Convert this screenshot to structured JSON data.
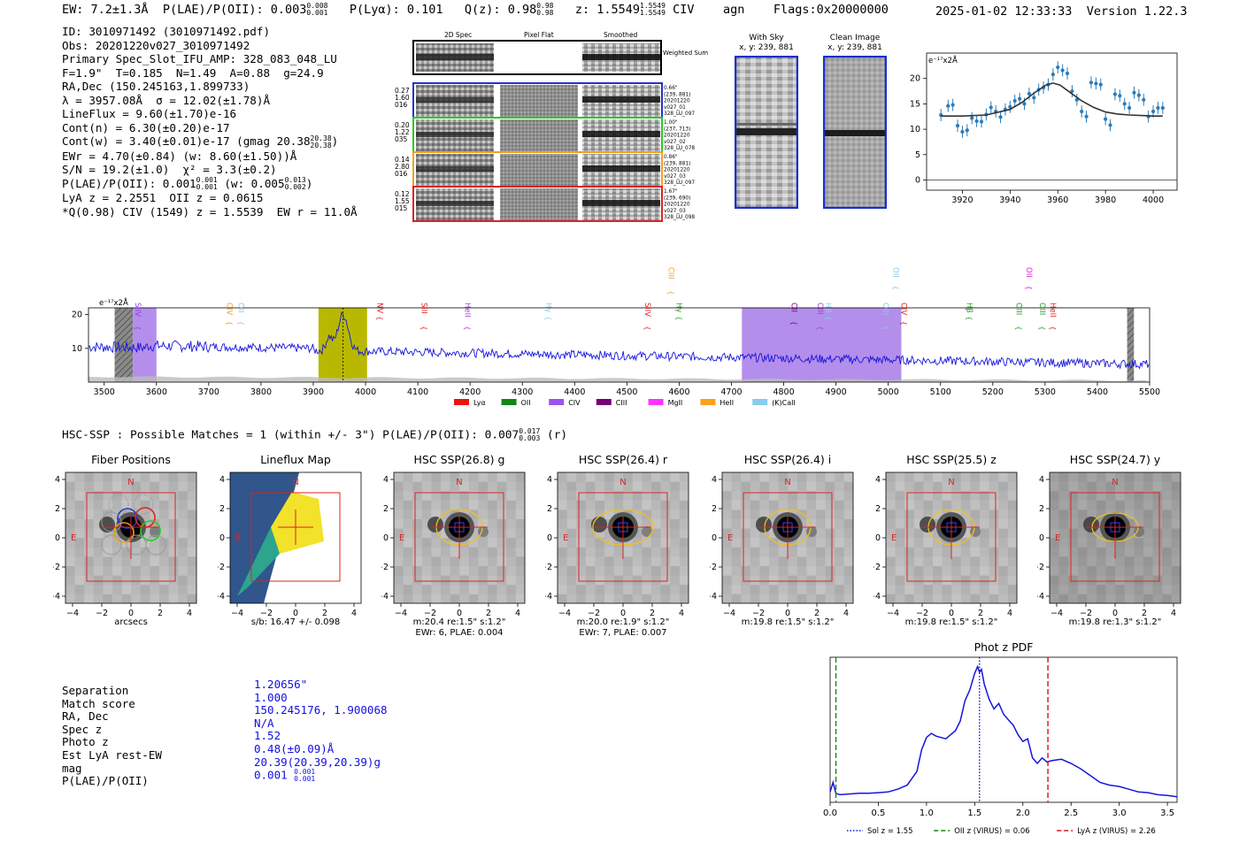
{
  "header": {
    "ew_label": "EW: 7.2±1.3Å",
    "plae_label": "P(LAE)/P(OII): 0.003",
    "plae_hi": "0.008",
    "plae_lo": "0.001",
    "plya": "P(Lyα): 0.101",
    "qz_label": "Q(z): 0.98",
    "qz_hi": "0.98",
    "qz_lo": "0.98",
    "z_label": "z: 1.5549",
    "z_hi": "1.5549",
    "z_lo": "1.5549",
    "line": "CIV",
    "cls": "agn",
    "flags": "Flags:0x20000000",
    "datetime": "2025-01-02 12:33:33",
    "version": "Version 1.22.3"
  },
  "info": {
    "l1": "ID: 3010971492 (3010971492.pdf)",
    "l2": "Obs: 20201220v027_3010971492",
    "l3": "Primary Spec_Slot_IFU_AMP: 328_083_048_LU",
    "l4": "F=1.9\"  T=0.185  N=1.49  A=0.88  g=24.9",
    "l5": "RA,Dec (150.245163,1.899733)",
    "l6": "λ = 3957.08Å  σ = 12.02(±1.78)Å",
    "l7": "LineFlux = 9.60(±1.70)e-16",
    "l8": "Cont(n) = 6.30(±0.20)e-17",
    "l9": "Cont(w) = 3.40(±0.01)e-17 (gmag 20.38",
    "l9_hi": "20.38",
    "l9_lo": "20.38",
    "l10": "EWr = 4.70(±0.84) (w: 8.60(±1.50))Å",
    "l11": "S/N = 19.2(±1.0)  χ² = 3.3(±0.2)",
    "l12a": "P(LAE)/P(OII): 0.001",
    "l12a_hi": "0.001",
    "l12a_lo": "0.001",
    "l12b": "(w: 0.005",
    "l12b_hi": "0.013",
    "l12b_lo": "0.002",
    "l13": "LyA z = 2.2551  OII z = 0.0615",
    "l14": "*Q(0.98) CIV (1549) z = 1.5539  EW r = 11.0Å"
  },
  "cutouts": {
    "col_labels": [
      "2D Spec",
      "Pixel Flat",
      "Smoothed"
    ],
    "weighted": "Weighted Sum",
    "rows": [
      {
        "left": [
          "0.27",
          "1.60",
          "016"
        ],
        "right": [
          "0.66\"",
          "(239, 881)",
          "20201220",
          "v027_01",
          "328_LU_097"
        ],
        "color": "#2233cc"
      },
      {
        "left": [
          "0.20",
          "1.22",
          "035"
        ],
        "right": [
          "1.00\"",
          "(237, 713)",
          "20201220",
          "v027_02",
          "328_LU_078"
        ],
        "color": "#22cc22"
      },
      {
        "left": [
          "0.14",
          "2.80",
          "016"
        ],
        "right": [
          "0.86\"",
          "(239, 881)",
          "20201220",
          "v027_03",
          "328_LU_097"
        ],
        "color": "#f0a020"
      },
      {
        "left": [
          "0.12",
          "1.55",
          "015"
        ],
        "right": [
          "1.67\"",
          "(239, 690)",
          "20201220",
          "v027_03",
          "328_LU_098"
        ],
        "color": "#dd2222"
      }
    ],
    "with_sky_title": "With Sky",
    "with_sky_coords": "x, y: 239, 881",
    "clean_title": "Clean Image",
    "clean_coords": "x, y: 239, 881"
  },
  "zoom_chart": {
    "unit": "e⁻¹⁷x2Å",
    "type": "scatter",
    "xlim": [
      3905,
      4010
    ],
    "ylim": [
      -2,
      25
    ],
    "xticks": [
      3920,
      3940,
      3960,
      3980,
      4000
    ],
    "yticks": [
      0,
      5,
      10,
      15,
      20
    ],
    "x": [
      3911,
      3914,
      3916,
      3918,
      3920,
      3922,
      3924,
      3926,
      3928,
      3930,
      3932,
      3934,
      3936,
      3938,
      3940,
      3942,
      3944,
      3946,
      3948,
      3950,
      3952,
      3954,
      3956,
      3958,
      3960,
      3962,
      3964,
      3966,
      3968,
      3970,
      3972,
      3974,
      3976,
      3978,
      3980,
      3982,
      3984,
      3986,
      3988,
      3990,
      3992,
      3994,
      3996,
      3998,
      4000,
      4002,
      4004
    ],
    "y": [
      12.8,
      14.6,
      14.8,
      10.7,
      9.5,
      9.8,
      12.2,
      11.6,
      11.5,
      12.9,
      14.3,
      13.5,
      12.4,
      13.9,
      14.4,
      15.6,
      16.0,
      15.0,
      17.0,
      16.2,
      17.8,
      18.2,
      18.8,
      20.8,
      22.2,
      21.6,
      21.0,
      17.5,
      15.8,
      13.5,
      12.5,
      19.2,
      19.0,
      18.8,
      12.0,
      10.8,
      16.9,
      16.6,
      15.0,
      14.2,
      17.2,
      16.7,
      15.8,
      12.5,
      13.5,
      14.2,
      14.2
    ],
    "fit_x": [
      3911,
      3920,
      3930,
      3940,
      3945,
      3950,
      3955,
      3958,
      3961,
      3965,
      3970,
      3975,
      3980,
      3985,
      3990,
      3995,
      4000,
      4004
    ],
    "fit_y": [
      12.6,
      12.6,
      12.8,
      13.9,
      15.3,
      17.1,
      18.7,
      19.1,
      18.7,
      17.3,
      15.6,
      14.3,
      13.4,
      13.0,
      12.8,
      12.7,
      12.6,
      12.6
    ]
  },
  "spectrum": {
    "unit": "e⁻¹⁷x2Å",
    "xlim": [
      3470,
      5500
    ],
    "ylim": [
      0,
      22
    ],
    "xticks": [
      3500,
      3600,
      3700,
      3800,
      3900,
      4000,
      4100,
      4200,
      4300,
      4400,
      4500,
      4600,
      4700,
      4800,
      4900,
      5000,
      5100,
      5200,
      5300,
      5400,
      5500
    ],
    "yticks": [
      10,
      20
    ],
    "line_markers": [
      {
        "x": 3555,
        "label": "SiIV",
        "color": "#9040e0",
        "row": 0
      },
      {
        "x": 3730,
        "label": "CIV",
        "color": "#f0a020",
        "row": 0
      },
      {
        "x": 3752,
        "label": "OII",
        "color": "#88ccee",
        "row": 0
      },
      {
        "x": 4018,
        "label": "NV",
        "color": "#dd2222",
        "row": 0
      },
      {
        "x": 4102,
        "label": "SiII",
        "color": "#dd2222",
        "row": 0
      },
      {
        "x": 4185,
        "label": "HeII",
        "color": "#a040d0",
        "row": 0
      },
      {
        "x": 4340,
        "label": "Hγ",
        "color": "#88ccee",
        "row": 0
      },
      {
        "x": 4530,
        "label": "SiIV",
        "color": "#dd2222",
        "row": 0
      },
      {
        "x": 4575,
        "label": "CIII",
        "color": "#f0a020",
        "row": 1
      },
      {
        "x": 4590,
        "label": "Hγ",
        "color": "#22a022",
        "row": 0
      },
      {
        "x": 4810,
        "label": "CII",
        "color": "#800080",
        "row": 0
      },
      {
        "x": 4860,
        "label": "CIII",
        "color": "#a040d0",
        "row": 0
      },
      {
        "x": 4875,
        "label": "Hβ",
        "color": "#88ccee",
        "row": 0
      },
      {
        "x": 4985,
        "label": "OIII",
        "color": "#88ccee",
        "row": 0
      },
      {
        "x": 5005,
        "label": "OII",
        "color": "#88ccee",
        "row": 1
      },
      {
        "x": 5020,
        "label": "CIV",
        "color": "#dd2222",
        "row": 0
      },
      {
        "x": 5145,
        "label": "Hβ",
        "color": "#22a022",
        "row": 0
      },
      {
        "x": 5240,
        "label": "OIII",
        "color": "#22a022",
        "row": 0
      },
      {
        "x": 5260,
        "label": "OII",
        "color": "#dd22dd",
        "row": 1
      },
      {
        "x": 5285,
        "label": "OIII",
        "color": "#22a022",
        "row": 0
      },
      {
        "x": 5305,
        "label": "HeII",
        "color": "#dd2222",
        "row": 0
      }
    ],
    "legend": [
      {
        "label": "Lyα",
        "color": "#ee1111"
      },
      {
        "label": "OII",
        "color": "#118811"
      },
      {
        "label": "CIV",
        "color": "#9955ee"
      },
      {
        "label": "CIII",
        "color": "#770077"
      },
      {
        "label": "MgII",
        "color": "#ff33ff"
      },
      {
        "label": "HeII",
        "color": "#ffa01a"
      },
      {
        "label": "(K)CaII",
        "color": "#88ccee"
      }
    ]
  },
  "hsc_header": {
    "text": "HSC-SSP : Possible Matches = 1 (within +/- 3\")  P(LAE)/P(OII): 0.007",
    "hi": "0.017",
    "lo": "0.003",
    "suffix": "(r)"
  },
  "thumbs": [
    {
      "title": "Fiber Positions",
      "cap1": "arcsecs",
      "cap2": ""
    },
    {
      "title": "Lineflux Map",
      "cap1": "s/b: 16.47 +/- 0.098",
      "cap2": ""
    },
    {
      "title": "HSC SSP(26.8) g",
      "cap1": "m:20.4  re:1.5\"  s:1.2\"",
      "cap2": "EWr: 6, PLAE: 0.004"
    },
    {
      "title": "HSC SSP(26.4) r",
      "cap1": "m:20.0  re:1.9\"  s:1.2\"",
      "cap2": "EWr: 7, PLAE: 0.007"
    },
    {
      "title": "HSC SSP(26.4) i",
      "cap1": "m:19.8  re:1.5\"  s:1.2\"",
      "cap2": ""
    },
    {
      "title": "HSC SSP(25.5) z",
      "cap1": "m:19.8  re:1.5\"  s:1.2\"",
      "cap2": ""
    },
    {
      "title": "HSC SSP(24.7) y",
      "cap1": "m:19.8  re:1.3\"  s:1.2\"",
      "cap2": ""
    }
  ],
  "thumb_axes": {
    "ticks": [
      "−4",
      "−2",
      "0",
      "2",
      "4"
    ],
    "north": "N",
    "east": "E"
  },
  "match": {
    "labels": [
      "Separation",
      "Match score",
      "RA, Dec",
      "Spec z",
      "Photo z",
      "Est LyA rest-EW",
      "mag",
      "P(LAE)/P(OII)"
    ],
    "values": [
      "1.20656\"",
      "1.000",
      "150.245176, 1.900068",
      "N/A",
      "1.52",
      "0.48(±0.09)Å",
      "20.39(20.39,20.39)g",
      "0.001"
    ],
    "plae_hi": "0.001",
    "plae_lo": "0.001"
  },
  "photz": {
    "title": "Phot z PDF",
    "type": "line",
    "xlim": [
      0,
      3.6
    ],
    "xticks": [
      "0.0",
      "0.5",
      "1.0",
      "1.5",
      "2.0",
      "2.5",
      "3.0",
      "3.5"
    ],
    "x": [
      0.0,
      0.03,
      0.06,
      0.1,
      0.2,
      0.3,
      0.4,
      0.5,
      0.6,
      0.7,
      0.8,
      0.9,
      0.95,
      1.0,
      1.05,
      1.1,
      1.2,
      1.3,
      1.35,
      1.4,
      1.45,
      1.5,
      1.53,
      1.55,
      1.57,
      1.6,
      1.65,
      1.7,
      1.75,
      1.8,
      1.85,
      1.9,
      1.95,
      2.0,
      2.05,
      2.1,
      2.15,
      2.2,
      2.25,
      2.3,
      2.4,
      2.5,
      2.6,
      2.7,
      2.8,
      2.9,
      3.0,
      3.1,
      3.2,
      3.3,
      3.4,
      3.5,
      3.6
    ],
    "y": [
      0.05,
      0.12,
      0.04,
      0.03,
      0.035,
      0.04,
      0.04,
      0.045,
      0.05,
      0.07,
      0.1,
      0.2,
      0.36,
      0.45,
      0.48,
      0.46,
      0.44,
      0.5,
      0.57,
      0.72,
      0.8,
      0.92,
      0.97,
      0.93,
      0.95,
      0.84,
      0.73,
      0.66,
      0.7,
      0.62,
      0.58,
      0.54,
      0.47,
      0.42,
      0.44,
      0.3,
      0.26,
      0.3,
      0.27,
      0.28,
      0.29,
      0.26,
      0.22,
      0.17,
      0.12,
      0.1,
      0.09,
      0.07,
      0.05,
      0.045,
      0.03,
      0.025,
      0.015
    ],
    "vlines": [
      {
        "x": 1.55,
        "color": "#1515dd",
        "style": "dot",
        "label": "Sol z = 1.55"
      },
      {
        "x": 0.06,
        "color": "#118811",
        "style": "dash",
        "label": "OII z (VIRUS) = 0.06"
      },
      {
        "x": 2.26,
        "color": "#dd1111",
        "style": "dash",
        "label": "LyA z (VIRUS) = 2.26"
      }
    ]
  }
}
